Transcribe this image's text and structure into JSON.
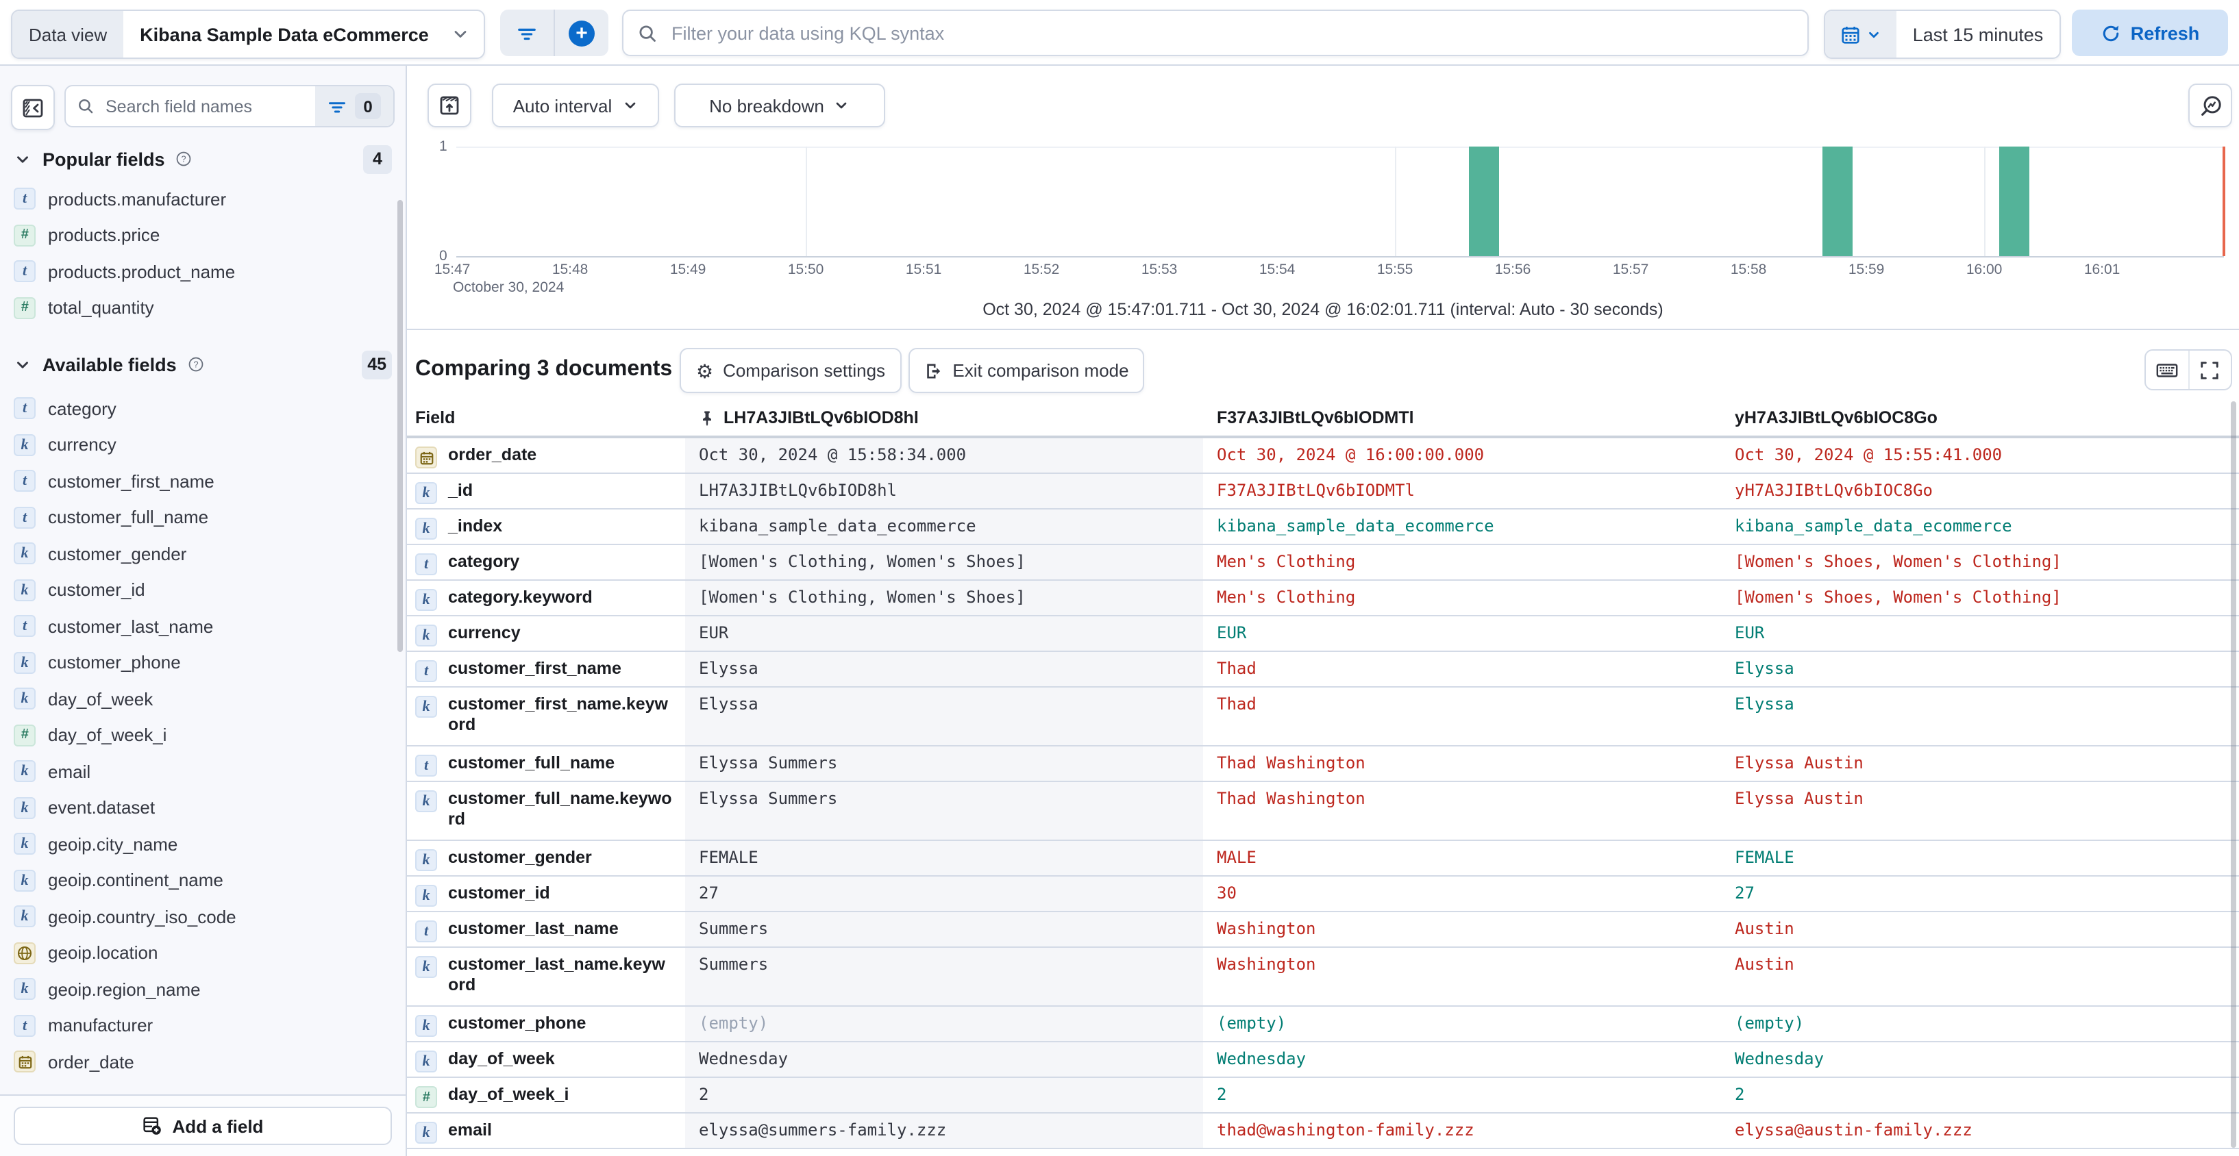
{
  "topbar": {
    "data_view_label": "Data view",
    "data_view_value": "Kibana Sample Data eCommerce",
    "kql_placeholder": "Filter your data using KQL syntax",
    "time_range": "Last 15 minutes",
    "refresh_label": "Refresh"
  },
  "icons": {
    "gear": "⚙"
  },
  "sidebar": {
    "search_placeholder": "Search field names",
    "filter_count": "0",
    "popular": {
      "label": "Popular fields",
      "count": "4",
      "items": [
        {
          "type": "text",
          "name": "products.manufacturer"
        },
        {
          "type": "number",
          "name": "products.price"
        },
        {
          "type": "text",
          "name": "products.product_name"
        },
        {
          "type": "number",
          "name": "total_quantity"
        }
      ]
    },
    "available": {
      "label": "Available fields",
      "count": "45",
      "items": [
        {
          "type": "text",
          "name": "category"
        },
        {
          "type": "keyword",
          "name": "currency"
        },
        {
          "type": "text",
          "name": "customer_first_name"
        },
        {
          "type": "text",
          "name": "customer_full_name"
        },
        {
          "type": "keyword",
          "name": "customer_gender"
        },
        {
          "type": "keyword",
          "name": "customer_id"
        },
        {
          "type": "text",
          "name": "customer_last_name"
        },
        {
          "type": "keyword",
          "name": "customer_phone"
        },
        {
          "type": "keyword",
          "name": "day_of_week"
        },
        {
          "type": "number",
          "name": "day_of_week_i"
        },
        {
          "type": "keyword",
          "name": "email"
        },
        {
          "type": "keyword",
          "name": "event.dataset"
        },
        {
          "type": "keyword",
          "name": "geoip.city_name"
        },
        {
          "type": "keyword",
          "name": "geoip.continent_name"
        },
        {
          "type": "keyword",
          "name": "geoip.country_iso_code"
        },
        {
          "type": "geo",
          "name": "geoip.location"
        },
        {
          "type": "keyword",
          "name": "geoip.region_name"
        },
        {
          "type": "text",
          "name": "manufacturer"
        },
        {
          "type": "date",
          "name": "order_date"
        }
      ]
    },
    "add_field_label": "Add a field"
  },
  "chart": {
    "auto_interval_label": "Auto interval",
    "breakdown_label": "No breakdown"
  },
  "chart_data": {
    "type": "bar",
    "title": "Document count histogram",
    "x_ticks": [
      "15:47",
      "15:48",
      "15:49",
      "15:50",
      "15:51",
      "15:52",
      "15:53",
      "15:54",
      "15:55",
      "15:56",
      "15:57",
      "15:58",
      "15:59",
      "16:00",
      "16:01"
    ],
    "x_date_label": "October 30, 2024",
    "y_ticks": [
      "1",
      "0"
    ],
    "ylim": [
      0,
      1
    ],
    "time_start": "15:47:01.711",
    "time_end": "16:02:01.711",
    "bucket_seconds": 30,
    "bars": [
      {
        "time": "15:55:30",
        "count": 1
      },
      {
        "time": "15:58:30",
        "count": 1
      },
      {
        "time": "16:00:00",
        "count": 1
      }
    ],
    "gridline_times": [
      "15:50:00",
      "15:55:00",
      "16:00:00"
    ],
    "bar_color": "#54b399",
    "end_marker_color": "#e7664c",
    "caption": "Oct 30, 2024 @ 15:47:01.711 - Oct 30, 2024 @ 16:02:01.711 (interval: Auto - 30 seconds)"
  },
  "comparison": {
    "title": "Comparing 3 documents",
    "settings_label": "Comparison settings",
    "exit_label": "Exit comparison mode",
    "field_column": "Field",
    "doc_ids": [
      "LH7A3JIBtLQv6bIOD8hl",
      "F37A3JIBtLQv6bIODMTl",
      "yH7A3JIBtLQv6bIOC8Go"
    ],
    "colors": {
      "base": "#343741",
      "diff": "#bd271e",
      "match": "#017d73",
      "muted": "#98a2b3"
    },
    "rows": [
      {
        "type": "date",
        "field": "order_date",
        "base": "Oct 30, 2024 @ 15:58:34.000",
        "base_s": "base",
        "wrap": false,
        "cols": [
          {
            "v": "Oct 30, 2024 @ 16:00:00.000",
            "s": "diff"
          },
          {
            "v": "Oct 30, 2024 @ 15:55:41.000",
            "s": "diff"
          }
        ]
      },
      {
        "type": "keyword",
        "field": "_id",
        "base": "LH7A3JIBtLQv6bIOD8hl",
        "base_s": "base",
        "wrap": false,
        "cols": [
          {
            "v": "F37A3JIBtLQv6bIODMTl",
            "s": "diff"
          },
          {
            "v": "yH7A3JIBtLQv6bIOC8Go",
            "s": "diff"
          }
        ]
      },
      {
        "type": "keyword",
        "field": "_index",
        "base": "kibana_sample_data_ecommerce",
        "base_s": "base",
        "wrap": false,
        "cols": [
          {
            "v": "kibana_sample_data_ecommerce",
            "s": "match"
          },
          {
            "v": "kibana_sample_data_ecommerce",
            "s": "match"
          }
        ]
      },
      {
        "type": "text",
        "field": "category",
        "base": "[Women's Clothing, Women's Shoes]",
        "base_s": "base",
        "wrap": false,
        "cols": [
          {
            "v": "Men's Clothing",
            "s": "diff"
          },
          {
            "v": "[Women's Shoes, Women's Clothing]",
            "s": "diff"
          }
        ]
      },
      {
        "type": "keyword",
        "field": "category.keyword",
        "base": "[Women's Clothing, Women's Shoes]",
        "base_s": "base",
        "wrap": false,
        "cols": [
          {
            "v": "Men's Clothing",
            "s": "diff"
          },
          {
            "v": "[Women's Shoes, Women's Clothing]",
            "s": "diff"
          }
        ]
      },
      {
        "type": "keyword",
        "field": "currency",
        "base": "EUR",
        "base_s": "base",
        "wrap": false,
        "cols": [
          {
            "v": "EUR",
            "s": "match"
          },
          {
            "v": "EUR",
            "s": "match"
          }
        ]
      },
      {
        "type": "text",
        "field": "customer_first_name",
        "base": "Elyssa",
        "base_s": "base",
        "wrap": false,
        "cols": [
          {
            "v": "Thad",
            "s": "diff"
          },
          {
            "v": "Elyssa",
            "s": "match"
          }
        ]
      },
      {
        "type": "keyword",
        "field": "customer_first_name.keyword",
        "base": "Elyssa",
        "base_s": "base",
        "wrap": true,
        "cols": [
          {
            "v": "Thad",
            "s": "diff"
          },
          {
            "v": "Elyssa",
            "s": "match"
          }
        ]
      },
      {
        "type": "text",
        "field": "customer_full_name",
        "base": "Elyssa Summers",
        "base_s": "base",
        "wrap": false,
        "cols": [
          {
            "v": "Thad Washington",
            "s": "diff"
          },
          {
            "v": "Elyssa Austin",
            "s": "diff"
          }
        ]
      },
      {
        "type": "keyword",
        "field": "customer_full_name.keyword",
        "base": "Elyssa Summers",
        "base_s": "base",
        "wrap": true,
        "cols": [
          {
            "v": "Thad Washington",
            "s": "diff"
          },
          {
            "v": "Elyssa Austin",
            "s": "diff"
          }
        ]
      },
      {
        "type": "keyword",
        "field": "customer_gender",
        "base": "FEMALE",
        "base_s": "base",
        "wrap": false,
        "cols": [
          {
            "v": "MALE",
            "s": "diff"
          },
          {
            "v": "FEMALE",
            "s": "match"
          }
        ]
      },
      {
        "type": "keyword",
        "field": "customer_id",
        "base": "27",
        "base_s": "base",
        "wrap": false,
        "cols": [
          {
            "v": "30",
            "s": "diff"
          },
          {
            "v": "27",
            "s": "match"
          }
        ]
      },
      {
        "type": "text",
        "field": "customer_last_name",
        "base": "Summers",
        "base_s": "base",
        "wrap": false,
        "cols": [
          {
            "v": "Washington",
            "s": "diff"
          },
          {
            "v": "Austin",
            "s": "diff"
          }
        ]
      },
      {
        "type": "keyword",
        "field": "customer_last_name.keyword",
        "base": "Summers",
        "base_s": "base",
        "wrap": true,
        "cols": [
          {
            "v": "Washington",
            "s": "diff"
          },
          {
            "v": "Austin",
            "s": "diff"
          }
        ]
      },
      {
        "type": "keyword",
        "field": "customer_phone",
        "base": "(empty)",
        "base_s": "muted",
        "wrap": false,
        "cols": [
          {
            "v": "(empty)",
            "s": "match"
          },
          {
            "v": "(empty)",
            "s": "match"
          }
        ]
      },
      {
        "type": "keyword",
        "field": "day_of_week",
        "base": "Wednesday",
        "base_s": "base",
        "wrap": false,
        "cols": [
          {
            "v": "Wednesday",
            "s": "match"
          },
          {
            "v": "Wednesday",
            "s": "match"
          }
        ]
      },
      {
        "type": "number",
        "field": "day_of_week_i",
        "base": "2",
        "base_s": "base",
        "wrap": false,
        "cols": [
          {
            "v": "2",
            "s": "match"
          },
          {
            "v": "2",
            "s": "match"
          }
        ]
      },
      {
        "type": "keyword",
        "field": "email",
        "base": "elyssa@summers-family.zzz",
        "base_s": "base",
        "wrap": false,
        "cols": [
          {
            "v": "thad@washington-family.zzz",
            "s": "diff"
          },
          {
            "v": "elyssa@austin-family.zzz",
            "s": "diff"
          }
        ]
      }
    ]
  }
}
